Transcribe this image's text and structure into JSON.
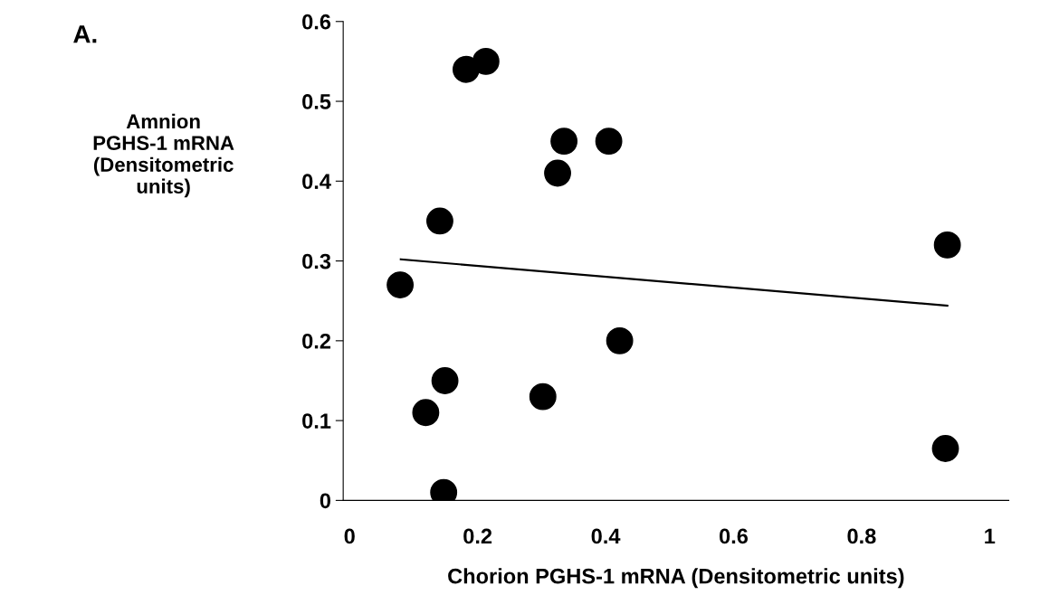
{
  "chart_data": {
    "type": "scatter",
    "title": "A.",
    "xlabel": "Chorion PGHS-1 mRNA (Densitometric units)",
    "ylabel": "Amnion\nPGHS-1 mRNA\n(Densitometric\nunits)",
    "xlim": [
      -0.01,
      1.03
    ],
    "xticks": [
      0,
      0.2,
      0.4,
      0.6,
      0.8,
      1
    ],
    "ylim": [
      0,
      0.6
    ],
    "yticks": [
      0,
      0.1,
      0.2,
      0.3,
      0.4,
      0.5,
      0.6
    ],
    "grid": false,
    "series": [
      {
        "marker": "circle",
        "color": "#000000",
        "x": [
          0.079,
          0.141,
          0.182,
          0.213,
          0.335,
          0.325,
          0.405,
          0.422,
          0.149,
          0.119,
          0.302,
          0.147,
          0.934,
          0.931
        ],
        "values": [
          0.27,
          0.35,
          0.54,
          0.55,
          0.45,
          0.41,
          0.45,
          0.2,
          0.15,
          0.11,
          0.13,
          0.01,
          0.32,
          0.065
        ]
      },
      {
        "type": "line",
        "marker": "none",
        "color": "#000000",
        "x": [
          0.08,
          0.934
        ],
        "values": [
          0.302,
          0.244
        ]
      }
    ]
  }
}
